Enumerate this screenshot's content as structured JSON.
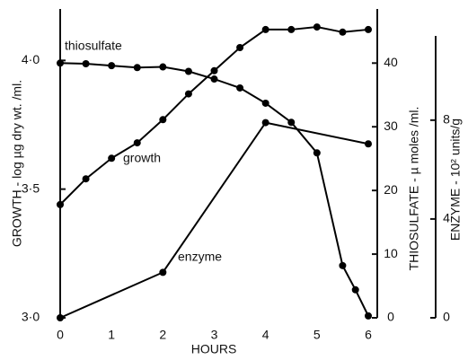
{
  "chart_data": {
    "type": "line",
    "xlabel": "HOURS",
    "ylabel": "GROWTH - log µg dry wt. /ml.",
    "y2label": "THIOSULFATE - µ moles /ml.",
    "y3label": "ENZYME - 10² units/g",
    "annotations": [
      "thiosulfate",
      "growth",
      "enzyme"
    ],
    "xlim": [
      0,
      6
    ],
    "xticks": [
      0,
      1,
      2,
      3,
      4,
      5,
      6
    ],
    "ylim": [
      3.0,
      4.2
    ],
    "yticks": [
      {
        "value": 3.0,
        "label": "3·0"
      },
      {
        "value": 3.5,
        "label": "3·5"
      },
      {
        "value": 4.0,
        "label": "4·0"
      }
    ],
    "y2lim": [
      0,
      48.5
    ],
    "y2ticks": [
      0,
      10,
      20,
      30,
      40
    ],
    "y3lim": [
      0,
      12.5
    ],
    "y3ticks": [
      0,
      4,
      8
    ],
    "series": [
      {
        "name": "growth",
        "axis": "y",
        "color": "#000000",
        "x": [
          0,
          0.5,
          1,
          1.5,
          2,
          2.5,
          3,
          3.5,
          4,
          4.5,
          5,
          5.5,
          6
        ],
        "values": [
          3.44,
          3.54,
          3.62,
          3.68,
          3.77,
          3.87,
          3.96,
          4.05,
          4.12,
          4.12,
          4.13,
          4.11,
          4.12
        ]
      },
      {
        "name": "thiosulfate",
        "axis": "y2",
        "color": "#000000",
        "x": [
          0,
          0.5,
          1,
          1.5,
          2,
          2.5,
          3,
          3.5,
          4,
          4.5,
          5,
          5.5,
          5.75,
          6
        ],
        "values": [
          40,
          39.9,
          39.6,
          39.3,
          39.4,
          38.7,
          37.5,
          36.1,
          33.7,
          30.7,
          25.9,
          8.2,
          4.4,
          0.3
        ]
      },
      {
        "name": "enzyme",
        "axis": "y3",
        "color": "#000000",
        "x": [
          0,
          2,
          4,
          6
        ],
        "values": [
          0,
          1.84,
          7.9,
          7.04
        ]
      }
    ]
  }
}
